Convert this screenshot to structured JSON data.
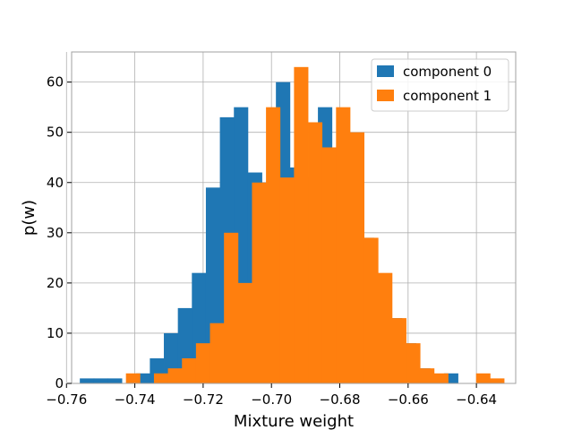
{
  "chart_data": {
    "type": "bar",
    "subtype": "histogram",
    "xlabel": "Mixture weight",
    "ylabel": "p(w)",
    "xlim": [
      -0.7585,
      -0.6285
    ],
    "ylim": [
      0,
      66
    ],
    "grid": true,
    "legend_position": "top-right",
    "x_ticks": [
      -0.76,
      -0.74,
      -0.72,
      -0.7,
      -0.68,
      -0.66,
      -0.64
    ],
    "x_tick_labels": [
      "−0.76",
      "−0.74",
      "−0.72",
      "−0.70",
      "−0.68",
      "−0.66",
      "−0.64"
    ],
    "y_ticks": [
      0,
      10,
      20,
      30,
      40,
      50,
      60
    ],
    "y_tick_labels": [
      "0",
      "10",
      "20",
      "30",
      "40",
      "50",
      "60"
    ],
    "series": [
      {
        "name": "component 0",
        "color": "#1f77b4",
        "bins": [
          {
            "x0": -0.7561,
            "x1": -0.752,
            "y": 1
          },
          {
            "x0": -0.752,
            "x1": -0.7479,
            "y": 1
          },
          {
            "x0": -0.7479,
            "x1": -0.7438,
            "y": 1
          },
          {
            "x0": -0.7438,
            "x1": -0.7397,
            "y": 0
          },
          {
            "x0": -0.7397,
            "x1": -0.7356,
            "y": 2
          },
          {
            "x0": -0.7356,
            "x1": -0.7315,
            "y": 5
          },
          {
            "x0": -0.7315,
            "x1": -0.7274,
            "y": 10
          },
          {
            "x0": -0.7274,
            "x1": -0.7233,
            "y": 15
          },
          {
            "x0": -0.7233,
            "x1": -0.7192,
            "y": 22
          },
          {
            "x0": -0.7192,
            "x1": -0.7151,
            "y": 39
          },
          {
            "x0": -0.7151,
            "x1": -0.711,
            "y": 53
          },
          {
            "x0": -0.711,
            "x1": -0.7069,
            "y": 55
          },
          {
            "x0": -0.7069,
            "x1": -0.7028,
            "y": 42
          },
          {
            "x0": -0.7028,
            "x1": -0.6987,
            "y": 40
          },
          {
            "x0": -0.6987,
            "x1": -0.6946,
            "y": 60
          },
          {
            "x0": -0.6946,
            "x1": -0.6905,
            "y": 43
          },
          {
            "x0": -0.6905,
            "x1": -0.6864,
            "y": 41
          },
          {
            "x0": -0.6864,
            "x1": -0.6823,
            "y": 55
          },
          {
            "x0": -0.6823,
            "x1": -0.6782,
            "y": 47
          },
          {
            "x0": -0.6782,
            "x1": -0.6741,
            "y": 40
          },
          {
            "x0": -0.6741,
            "x1": -0.67,
            "y": 29
          },
          {
            "x0": -0.67,
            "x1": -0.6659,
            "y": 20
          },
          {
            "x0": -0.6659,
            "x1": -0.6618,
            "y": 13
          },
          {
            "x0": -0.6618,
            "x1": -0.6577,
            "y": 8
          },
          {
            "x0": -0.6577,
            "x1": -0.6536,
            "y": 3
          },
          {
            "x0": -0.6536,
            "x1": -0.6495,
            "y": 1
          },
          {
            "x0": -0.6495,
            "x1": -0.6454,
            "y": 2
          }
        ]
      },
      {
        "name": "component 1",
        "color": "#ff7f0e",
        "bins": [
          {
            "x0": -0.7426,
            "x1": -0.7385,
            "y": 2
          },
          {
            "x0": -0.7385,
            "x1": -0.7344,
            "y": 0
          },
          {
            "x0": -0.7344,
            "x1": -0.7303,
            "y": 2
          },
          {
            "x0": -0.7303,
            "x1": -0.7262,
            "y": 3
          },
          {
            "x0": -0.7262,
            "x1": -0.7221,
            "y": 5
          },
          {
            "x0": -0.7221,
            "x1": -0.718,
            "y": 8
          },
          {
            "x0": -0.718,
            "x1": -0.7139,
            "y": 12
          },
          {
            "x0": -0.7139,
            "x1": -0.7098,
            "y": 30
          },
          {
            "x0": -0.7098,
            "x1": -0.7057,
            "y": 20
          },
          {
            "x0": -0.7057,
            "x1": -0.7016,
            "y": 40
          },
          {
            "x0": -0.7016,
            "x1": -0.6975,
            "y": 55
          },
          {
            "x0": -0.6975,
            "x1": -0.6934,
            "y": 41
          },
          {
            "x0": -0.6934,
            "x1": -0.6893,
            "y": 63
          },
          {
            "x0": -0.6893,
            "x1": -0.6852,
            "y": 52
          },
          {
            "x0": -0.6852,
            "x1": -0.6811,
            "y": 47
          },
          {
            "x0": -0.6811,
            "x1": -0.677,
            "y": 55
          },
          {
            "x0": -0.677,
            "x1": -0.6729,
            "y": 50
          },
          {
            "x0": -0.6729,
            "x1": -0.6688,
            "y": 29
          },
          {
            "x0": -0.6688,
            "x1": -0.6647,
            "y": 22
          },
          {
            "x0": -0.6647,
            "x1": -0.6606,
            "y": 13
          },
          {
            "x0": -0.6606,
            "x1": -0.6565,
            "y": 8
          },
          {
            "x0": -0.6565,
            "x1": -0.6524,
            "y": 3
          },
          {
            "x0": -0.6524,
            "x1": -0.6483,
            "y": 2
          },
          {
            "x0": -0.6483,
            "x1": -0.6442,
            "y": 0
          },
          {
            "x0": -0.6442,
            "x1": -0.6401,
            "y": 0
          },
          {
            "x0": -0.6401,
            "x1": -0.636,
            "y": 2
          },
          {
            "x0": -0.636,
            "x1": -0.6319,
            "y": 1
          }
        ]
      }
    ]
  }
}
